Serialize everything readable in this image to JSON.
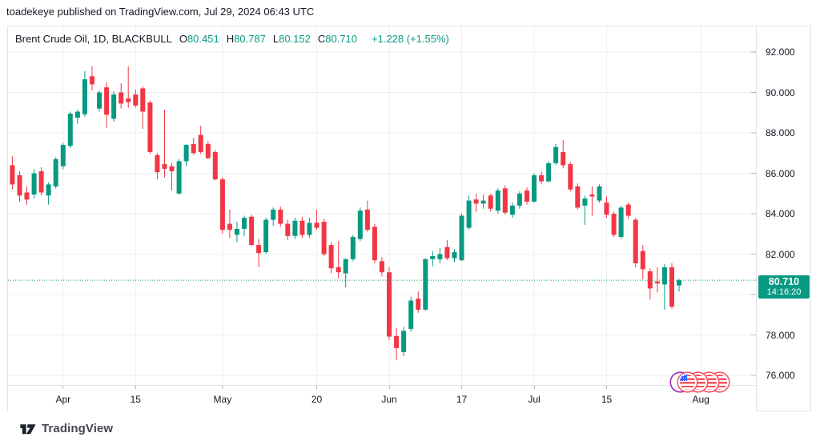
{
  "attribution": "toadekeye published on TradingView.com, Jul 29, 2024 06:43 UTC",
  "legend": {
    "symbol": "Brent Crude Oil, 1D, BLACKBULL",
    "ohlc": [
      {
        "label": "O",
        "value": "80.451"
      },
      {
        "label": "H",
        "value": "80.787"
      },
      {
        "label": "L",
        "value": "80.152"
      },
      {
        "label": "C",
        "value": "80.710"
      }
    ],
    "change": "+1.228 (+1.55%)"
  },
  "price_label": {
    "price": "80.710",
    "countdown": "14:16:20"
  },
  "colors": {
    "up": "#089981",
    "down": "#F23645",
    "text": "#131722",
    "grid": "#ECEFF2",
    "border": "#E0E3EB",
    "axis_tick": "#B2B5BE",
    "tag_bg": "#089981",
    "flag_red": "#F7525F",
    "flag_blue": "#2962FF",
    "purple": "#9C27B0",
    "brand": "#434651"
  },
  "chart_data": {
    "type": "candlestick",
    "title": "Brent Crude Oil, 1D, BLACKBULL",
    "interval": "1D",
    "grid": true,
    "legend_position": "top-left",
    "y_axis": {
      "side": "right",
      "range": [
        75.5,
        92.8
      ],
      "ticks": [
        {
          "label": "92.000",
          "value": 92
        },
        {
          "label": "90.000",
          "value": 90
        },
        {
          "label": "88.000",
          "value": 88
        },
        {
          "label": "86.000",
          "value": 86
        },
        {
          "label": "84.000",
          "value": 84
        },
        {
          "label": "82.000",
          "value": 82
        },
        {
          "label": "80.000",
          "value": 80
        },
        {
          "label": "78.000",
          "value": 78
        },
        {
          "label": "76.000",
          "value": 76
        }
      ]
    },
    "x_axis": {
      "labels": [
        {
          "text": "Apr",
          "day_index": 7
        },
        {
          "text": "15",
          "day_index": 17
        },
        {
          "text": "May",
          "day_index": 29
        },
        {
          "text": "20",
          "day_index": 42
        },
        {
          "text": "Jun",
          "day_index": 52
        },
        {
          "text": "17",
          "day_index": 62
        },
        {
          "text": "Jul",
          "day_index": 72
        },
        {
          "text": "15",
          "day_index": 82
        },
        {
          "text": "Aug",
          "day_index": 95
        }
      ]
    },
    "current_price": 80.71,
    "countdown": "14:16:20",
    "candles_format": [
      "open",
      "high",
      "low",
      "close"
    ],
    "candles": [
      [
        86.4,
        86.85,
        85.2,
        85.45
      ],
      [
        85.9,
        86.1,
        84.6,
        84.9
      ],
      [
        85.05,
        85.35,
        84.45,
        84.7
      ],
      [
        84.95,
        86.2,
        84.75,
        86.0
      ],
      [
        86.1,
        86.3,
        84.9,
        85.05
      ],
      [
        84.9,
        85.55,
        84.45,
        85.45
      ],
      [
        85.35,
        86.8,
        85.25,
        86.7
      ],
      [
        86.35,
        87.5,
        86.2,
        87.4
      ],
      [
        87.35,
        89.05,
        87.25,
        88.95
      ],
      [
        88.75,
        89.15,
        88.45,
        89.05
      ],
      [
        88.92,
        91.05,
        88.8,
        90.65
      ],
      [
        90.8,
        91.3,
        90.1,
        90.4
      ],
      [
        89.2,
        90.1,
        89.05,
        90.0
      ],
      [
        90.25,
        90.5,
        88.25,
        88.9
      ],
      [
        88.7,
        90.05,
        88.55,
        89.9
      ],
      [
        90.0,
        90.45,
        89.2,
        89.45
      ],
      [
        89.7,
        91.3,
        89.25,
        89.52
      ],
      [
        89.9,
        90.15,
        89.25,
        89.35
      ],
      [
        90.2,
        90.3,
        88.2,
        89.05
      ],
      [
        89.5,
        89.6,
        86.95,
        87.05
      ],
      [
        86.9,
        87.0,
        85.7,
        86.05
      ],
      [
        86.45,
        89.15,
        85.8,
        86.22
      ],
      [
        86.35,
        86.5,
        85.15,
        86.1
      ],
      [
        85.0,
        86.7,
        84.95,
        86.6
      ],
      [
        86.6,
        87.45,
        86.35,
        87.4
      ],
      [
        87.45,
        87.75,
        86.9,
        87.0
      ],
      [
        87.9,
        88.35,
        86.95,
        87.05
      ],
      [
        87.45,
        87.6,
        86.7,
        86.75
      ],
      [
        87.05,
        87.15,
        85.65,
        85.7
      ],
      [
        85.7,
        85.8,
        83.0,
        83.2
      ],
      [
        83.5,
        84.2,
        82.8,
        83.2
      ],
      [
        82.95,
        83.6,
        82.6,
        83.25
      ],
      [
        83.25,
        83.9,
        82.9,
        83.8
      ],
      [
        83.85,
        83.95,
        82.4,
        82.45
      ],
      [
        82.45,
        82.75,
        81.35,
        82.05
      ],
      [
        82.1,
        83.8,
        82.0,
        83.7
      ],
      [
        83.7,
        84.3,
        83.4,
        84.2
      ],
      [
        84.2,
        84.35,
        83.35,
        83.5
      ],
      [
        83.5,
        83.7,
        82.7,
        82.9
      ],
      [
        82.9,
        83.8,
        82.75,
        83.65
      ],
      [
        83.65,
        83.85,
        82.8,
        82.95
      ],
      [
        82.95,
        83.8,
        82.8,
        83.55
      ],
      [
        83.55,
        84.2,
        83.2,
        83.3
      ],
      [
        83.6,
        83.75,
        81.9,
        82.0
      ],
      [
        82.45,
        82.6,
        81.05,
        81.3
      ],
      [
        81.35,
        82.65,
        80.8,
        81.1
      ],
      [
        81.05,
        81.8,
        80.35,
        81.75
      ],
      [
        81.75,
        82.95,
        81.65,
        82.85
      ],
      [
        82.75,
        84.3,
        82.65,
        84.15
      ],
      [
        84.2,
        84.65,
        83.1,
        83.2
      ],
      [
        83.35,
        83.5,
        81.55,
        81.7
      ],
      [
        81.65,
        81.85,
        80.9,
        81.1
      ],
      [
        81.1,
        81.35,
        77.75,
        77.92
      ],
      [
        77.95,
        78.35,
        76.75,
        77.35
      ],
      [
        77.15,
        78.4,
        76.95,
        78.2
      ],
      [
        78.3,
        79.9,
        78.15,
        79.7
      ],
      [
        79.8,
        80.15,
        79.1,
        79.25
      ],
      [
        79.25,
        81.8,
        79.2,
        81.75
      ],
      [
        81.75,
        82.15,
        81.4,
        81.9
      ],
      [
        81.75,
        82.3,
        81.55,
        82.0
      ],
      [
        82.35,
        82.7,
        81.7,
        81.8
      ],
      [
        81.8,
        82.25,
        81.6,
        82.1
      ],
      [
        81.7,
        84.0,
        81.65,
        83.9
      ],
      [
        83.3,
        84.9,
        83.2,
        84.65
      ],
      [
        84.7,
        85.0,
        84.1,
        84.5
      ],
      [
        84.5,
        84.95,
        84.25,
        84.65
      ],
      [
        84.9,
        85.0,
        84.1,
        84.25
      ],
      [
        84.15,
        85.25,
        84.0,
        85.15
      ],
      [
        85.25,
        85.4,
        83.95,
        84.05
      ],
      [
        83.95,
        84.55,
        83.8,
        84.4
      ],
      [
        84.4,
        85.1,
        84.25,
        85.0
      ],
      [
        85.15,
        85.3,
        84.45,
        84.6
      ],
      [
        84.6,
        86.0,
        84.55,
        85.9
      ],
      [
        85.9,
        86.1,
        85.45,
        85.6
      ],
      [
        85.6,
        86.6,
        85.55,
        86.5
      ],
      [
        86.5,
        87.45,
        86.4,
        87.3
      ],
      [
        87.05,
        87.65,
        86.25,
        86.4
      ],
      [
        86.45,
        86.55,
        85.1,
        85.2
      ],
      [
        85.35,
        85.5,
        84.2,
        84.3
      ],
      [
        84.4,
        84.9,
        83.45,
        84.75
      ],
      [
        84.95,
        85.35,
        83.9,
        84.85
      ],
      [
        84.65,
        85.45,
        84.55,
        85.35
      ],
      [
        84.55,
        84.85,
        83.8,
        83.95
      ],
      [
        84.0,
        84.1,
        82.85,
        82.95
      ],
      [
        82.85,
        84.4,
        82.75,
        84.3
      ],
      [
        84.45,
        84.55,
        83.75,
        83.9
      ],
      [
        83.7,
        83.8,
        81.35,
        81.55
      ],
      [
        82.15,
        82.45,
        80.75,
        81.25
      ],
      [
        81.15,
        81.3,
        79.75,
        80.3
      ],
      [
        80.65,
        81.35,
        80.1,
        80.55
      ],
      [
        80.5,
        81.5,
        79.25,
        81.35
      ],
      [
        81.35,
        81.55,
        79.3,
        79.4
      ],
      [
        80.451,
        80.787,
        80.152,
        80.71
      ]
    ]
  },
  "event_markers": {
    "description": "overlapping economic event badges",
    "badges": [
      {
        "style": "purple-ring"
      },
      {
        "style": "us-flag"
      },
      {
        "style": "us-flag"
      },
      {
        "style": "us-flag"
      },
      {
        "style": "us-flag"
      }
    ]
  },
  "footer": {
    "brand": "TradingView"
  }
}
